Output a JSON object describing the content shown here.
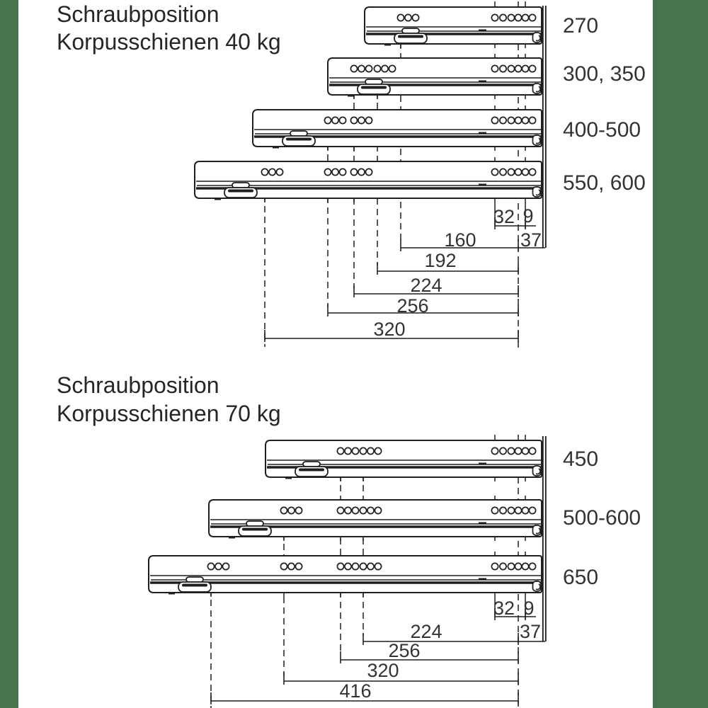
{
  "accent_color": "#47734f",
  "sections": [
    {
      "title_line1": "Schraubposition",
      "title_line2": "Korpusschienen 40 kg",
      "rail_labels": [
        "270",
        "300, 350",
        "400-500",
        "550, 600"
      ],
      "dim_labels": {
        "d32": "32",
        "d9": "9",
        "d160": "160",
        "d37": "37",
        "d192": "192",
        "d224": "224",
        "d256": "256",
        "d320": "320"
      }
    },
    {
      "title_line1": "Schraubposition",
      "title_line2": "Korpusschienen 70 kg",
      "rail_labels": [
        "450",
        "500-600",
        "650"
      ],
      "dim_labels": {
        "d32": "32",
        "d9": "9",
        "d224": "224",
        "d37": "37",
        "d256": "256",
        "d320": "320",
        "d416": "416"
      }
    }
  ]
}
